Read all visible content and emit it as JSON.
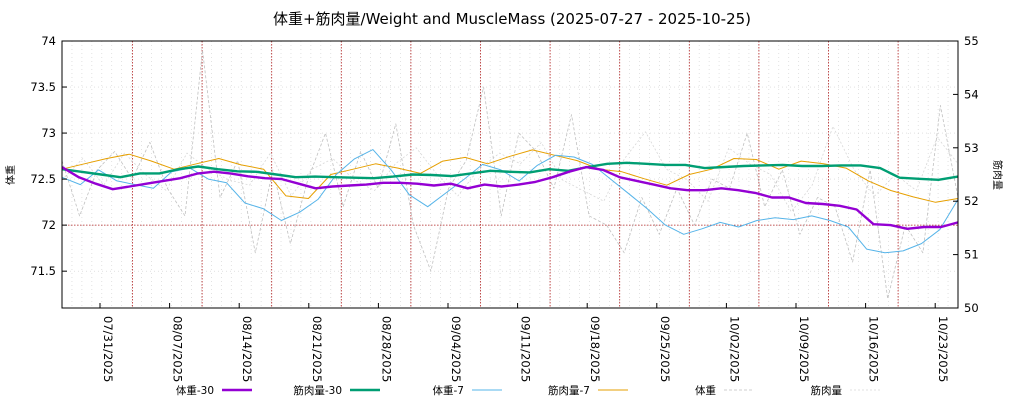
{
  "chart_data": {
    "type": "line",
    "title": "体重+筋肉量/Weight and MuscleMass (2025-07-27 - 2025-10-25)",
    "ylabel_left": "体重",
    "ylabel_right": "筋肉量",
    "xlabel": "",
    "grid": true,
    "x_range": [
      "2025-07-27",
      "2025-10-25"
    ],
    "ylim_left": [
      71.1,
      74.0
    ],
    "ylim_right": [
      50,
      55
    ],
    "left_ticks": [
      {
        "v": 71.5,
        "label": "71.5"
      },
      {
        "v": 72,
        "label": "72"
      },
      {
        "v": 72.5,
        "label": "72.5"
      },
      {
        "v": 73,
        "label": "73"
      },
      {
        "v": 73.5,
        "label": "73.5"
      },
      {
        "v": 74,
        "label": "74"
      }
    ],
    "right_ticks": [
      {
        "v": 50,
        "label": "50"
      },
      {
        "v": 51,
        "label": "51"
      },
      {
        "v": 52,
        "label": "52"
      },
      {
        "v": 53,
        "label": "53"
      },
      {
        "v": 54,
        "label": "54"
      },
      {
        "v": 55,
        "label": "55"
      }
    ],
    "x_tick_labels": [
      "07/31/2025",
      "08/07/2025",
      "08/14/2025",
      "08/21/2025",
      "08/28/2025",
      "09/04/2025",
      "09/11/2025",
      "09/18/2025",
      "09/25/2025",
      "10/02/2025",
      "10/09/2025",
      "10/16/2025",
      "10/23/2025"
    ],
    "reference_line_left": 72,
    "legend_position": "bottom",
    "series": [
      {
        "name": "体重-30",
        "axis": "left",
        "color": "#9400d3",
        "width": 2.4,
        "dash": "",
        "values": [
          72.63,
          72.52,
          72.45,
          72.39,
          72.42,
          72.45,
          72.48,
          72.51,
          72.56,
          72.58,
          72.56,
          72.53,
          72.51,
          72.5,
          72.45,
          72.4,
          72.42,
          72.43,
          72.44,
          72.46,
          72.46,
          72.45,
          72.43,
          72.45,
          72.4,
          72.44,
          72.42,
          72.44,
          72.47,
          72.52,
          72.58,
          72.63,
          72.6,
          72.52,
          72.48,
          72.44,
          72.4,
          72.38,
          72.38,
          72.4,
          72.38,
          72.35,
          72.3,
          72.3,
          72.24,
          72.23,
          72.21,
          72.17,
          72.01,
          72.0,
          71.96,
          71.98,
          71.98,
          72.03
        ]
      },
      {
        "name": "筋肉量-30",
        "axis": "right",
        "color": "#009e73",
        "width": 2.4,
        "dash": "",
        "values": [
          52.6,
          52.55,
          52.5,
          52.45,
          52.52,
          52.52,
          52.6,
          52.65,
          52.6,
          52.56,
          52.55,
          52.5,
          52.45,
          52.46,
          52.45,
          52.44,
          52.43,
          52.46,
          52.5,
          52.49,
          52.47,
          52.52,
          52.57,
          52.55,
          52.54,
          52.6,
          52.57,
          52.64,
          52.7,
          52.72,
          52.7,
          52.68,
          52.68,
          52.62,
          52.64,
          52.66,
          52.67,
          52.68,
          52.66,
          52.66,
          52.67,
          52.67,
          52.62,
          52.44,
          52.42,
          52.4,
          52.46
        ]
      },
      {
        "name": "体重-7",
        "axis": "left",
        "color": "#56b4e9",
        "width": 1,
        "dash": "",
        "values": [
          72.52,
          72.44,
          72.6,
          72.48,
          72.44,
          72.4,
          72.58,
          72.62,
          72.5,
          72.46,
          72.24,
          72.18,
          72.05,
          72.14,
          72.28,
          72.55,
          72.72,
          72.82,
          72.6,
          72.33,
          72.2,
          72.35,
          72.5,
          72.66,
          72.6,
          72.48,
          72.65,
          72.76,
          72.74,
          72.66,
          72.5,
          72.34,
          72.18,
          72.0,
          71.9,
          71.96,
          72.03,
          71.98,
          72.05,
          72.08,
          72.06,
          72.1,
          72.05,
          71.98,
          71.74,
          71.7,
          71.72,
          71.8,
          71.95,
          72.28
        ]
      },
      {
        "name": "筋肉量-7",
        "axis": "right",
        "color": "#e69f00",
        "width": 1,
        "dash": "",
        "values": [
          52.6,
          52.7,
          52.8,
          52.88,
          52.75,
          52.6,
          52.7,
          52.8,
          52.68,
          52.6,
          52.1,
          52.05,
          52.5,
          52.6,
          52.7,
          52.62,
          52.52,
          52.75,
          52.82,
          52.7,
          52.84,
          52.96,
          52.86,
          52.76,
          52.6,
          52.55,
          52.42,
          52.3,
          52.5,
          52.6,
          52.8,
          52.78,
          52.6,
          52.75,
          52.7,
          52.62,
          52.38,
          52.2,
          52.08,
          51.98,
          52.05
        ]
      },
      {
        "name": "体重",
        "axis": "left",
        "color": "#c0c0c0",
        "width": 0.8,
        "dash": "3,2",
        "values": [
          72.7,
          72.1,
          72.6,
          72.8,
          72.5,
          72.9,
          72.4,
          72.1,
          73.9,
          72.3,
          72.7,
          71.7,
          72.6,
          71.8,
          72.5,
          73.0,
          72.2,
          72.8,
          72.4,
          73.1,
          72.0,
          71.5,
          72.4,
          72.7,
          73.5,
          72.1,
          73.0,
          72.8,
          72.4,
          73.2,
          72.1,
          72.0,
          71.7,
          72.3,
          71.9,
          72.4,
          72.0,
          72.5,
          72.4,
          73.0,
          72.2,
          72.6,
          71.9,
          72.3,
          72.2,
          71.6,
          72.6,
          71.2,
          72.0,
          71.7,
          73.3,
          72.3
        ]
      },
      {
        "name": "筋肉量",
        "axis": "right",
        "color": "#d8d8d8",
        "width": 0.8,
        "dash": "2,2",
        "values": [
          52.4,
          52.8,
          52.3,
          52.9,
          52.5,
          52.2,
          52.9,
          52.6,
          52.4,
          52.3,
          52.9,
          52.1,
          52.6,
          52.8,
          52.4,
          52.2,
          52.7,
          53.0,
          52.5,
          52.1,
          52.6,
          52.9,
          52.7,
          53.1,
          52.4,
          52.2,
          52.0,
          52.8,
          53.3,
          52.6,
          52.4,
          52.0,
          53.0,
          52.7,
          52.5,
          51.8,
          52.3,
          53.4,
          52.6,
          52.1,
          52.5,
          52.2,
          53.2,
          52.7
        ]
      }
    ]
  }
}
